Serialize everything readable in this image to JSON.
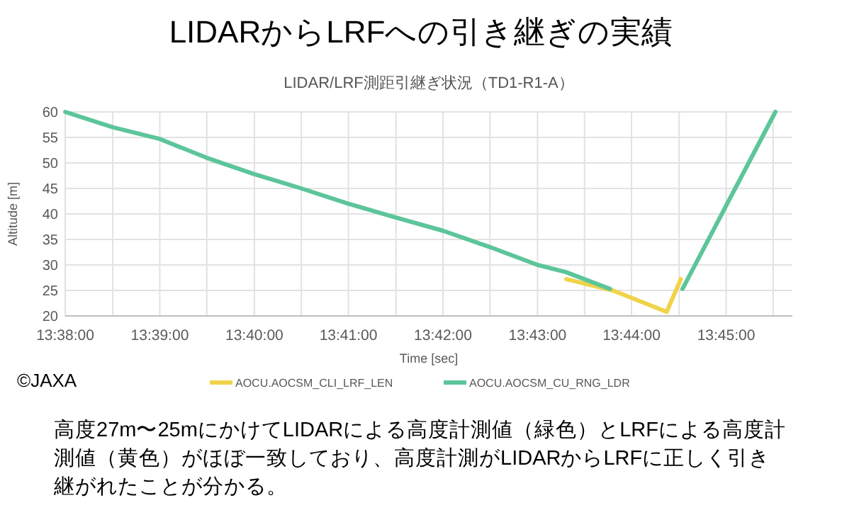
{
  "chart_data": {
    "type": "line",
    "title": "LIDARからLRFへの引き継ぎの実績",
    "subtitle": "LIDAR/LRF測距引継ぎ状況（TD1-R1-A）",
    "xlabel": "Time [sec]",
    "ylabel": "Altitude [m]",
    "xlim": [
      13.6333,
      13.7617
    ],
    "ylim": [
      20,
      60
    ],
    "xticks": [
      {
        "value": 13.6333,
        "label": "13:38:00"
      },
      {
        "value": 13.6417,
        "label": null
      },
      {
        "value": 13.65,
        "label": "13:39:00"
      },
      {
        "value": 13.6583,
        "label": null
      },
      {
        "value": 13.6667,
        "label": "13:40:00"
      },
      {
        "value": 13.675,
        "label": null
      },
      {
        "value": 13.6833,
        "label": "13:41:00"
      },
      {
        "value": 13.6917,
        "label": null
      },
      {
        "value": 13.7,
        "label": "13:42:00"
      },
      {
        "value": 13.7083,
        "label": null
      },
      {
        "value": 13.7167,
        "label": "13:43:00"
      },
      {
        "value": 13.725,
        "label": null
      },
      {
        "value": 13.7333,
        "label": "13:44:00"
      },
      {
        "value": 13.7417,
        "label": null
      },
      {
        "value": 13.75,
        "label": "13:45:00"
      },
      {
        "value": 13.7583,
        "label": null
      }
    ],
    "yticks": [
      20,
      25,
      30,
      35,
      40,
      45,
      50,
      55,
      60
    ],
    "grid": true,
    "legend": "bottom",
    "marker": "none",
    "line_style": "solid",
    "series": [
      {
        "name": "AOCU.AOCSM_CLI_LRF_LEN",
        "color": "#f0d34a",
        "x": [
          13.7218,
          13.73,
          13.7395,
          13.742
        ],
        "values": [
          27.2,
          25,
          20.8,
          27.2
        ]
      },
      {
        "name": "AOCU.AOCSM_CU_RNG_LDR",
        "color": "#5cc59a",
        "x": [
          13.6333,
          13.6417,
          13.65,
          13.6583,
          13.6667,
          13.675,
          13.6833,
          13.6917,
          13.7,
          13.7083,
          13.7167,
          13.7217,
          13.7295,
          13.736,
          13.7423,
          13.75,
          13.7587
        ],
        "values": [
          60,
          57,
          54.7,
          51,
          47.8,
          45,
          42,
          39.3,
          36.7,
          33.5,
          30,
          28.6,
          25.3,
          null,
          25.3,
          41.6,
          60
        ]
      }
    ],
    "annotations": [
      "©JAXA",
      "高度27m〜25mにかけてLIDARによる高度計測値（緑色）とLRFによる高度計測値（黄色）がほぼ一致しており、高度計測がLIDARからLRFに正しく引き継がれたことが分かる。"
    ]
  }
}
